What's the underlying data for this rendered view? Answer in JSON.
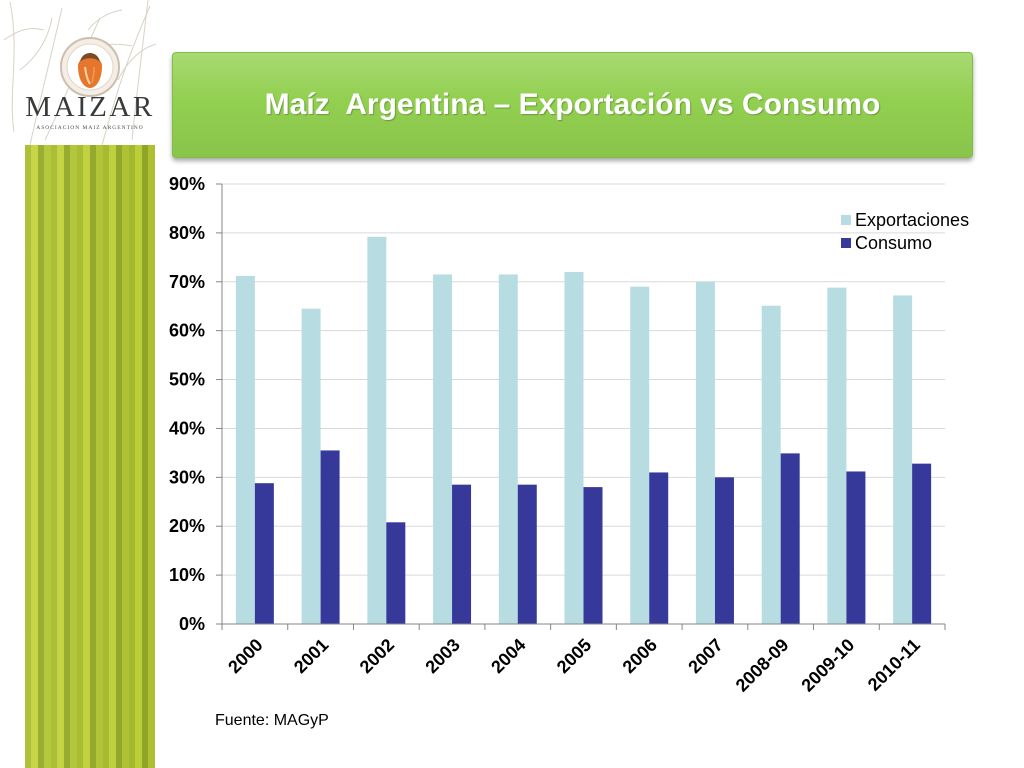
{
  "logo": {
    "wordmark": "MAIZAR",
    "tagline": "ASOCIACION MAIZ ARGENTINO",
    "emblem_icon": "corn-emblem-icon"
  },
  "slide": {
    "title": "Maíz  Argentina – Exportación vs Consumo",
    "source": "Fuente: MAGyP"
  },
  "colors": {
    "title_box": "#92d050",
    "gridline": "#d9d9d9",
    "axis": "#868686"
  },
  "chart_data": {
    "type": "bar",
    "categories": [
      "2000",
      "2001",
      "2002",
      "2003",
      "2004",
      "2005",
      "2006",
      "2007",
      "2008-09",
      "2009-10",
      "2010-11"
    ],
    "series": [
      {
        "name": "Exportaciones",
        "color": "#b7dde3",
        "values": [
          71.2,
          64.5,
          79.2,
          71.5,
          71.5,
          72.0,
          69.0,
          70.0,
          65.1,
          68.8,
          67.2
        ]
      },
      {
        "name": "Consumo",
        "color": "#36399a",
        "values": [
          28.8,
          35.5,
          20.8,
          28.5,
          28.5,
          28.0,
          31.0,
          30.0,
          34.9,
          31.2,
          32.8
        ]
      }
    ],
    "ylim": [
      0,
      90
    ],
    "y_ticks": [
      "0%",
      "10%",
      "20%",
      "30%",
      "40%",
      "50%",
      "60%",
      "70%",
      "80%",
      "90%"
    ],
    "grid": true,
    "legend_position": "right"
  }
}
